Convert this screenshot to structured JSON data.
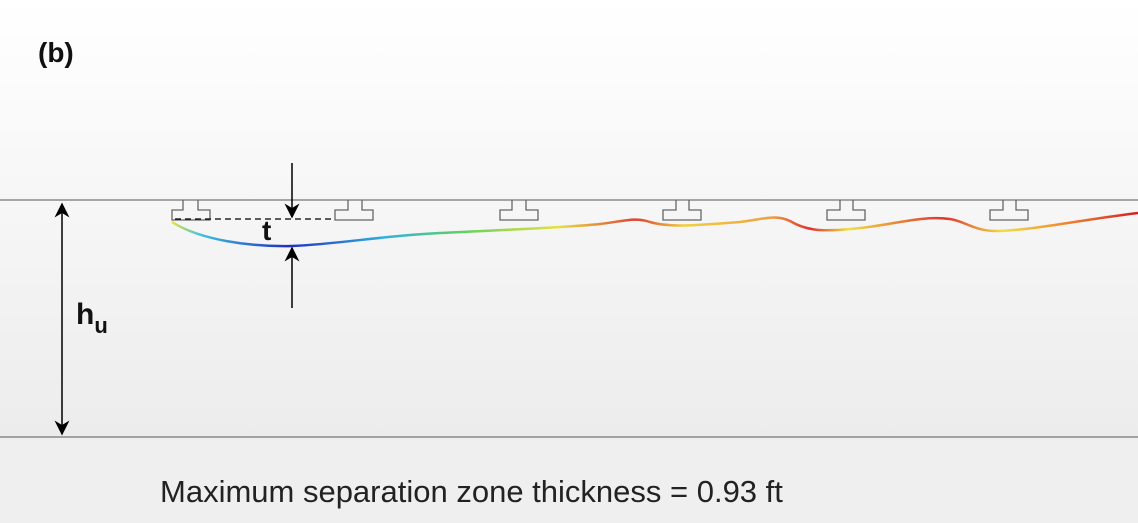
{
  "panel_label": "(b)",
  "labels": {
    "t": "t",
    "h": "h",
    "h_subscript": "u"
  },
  "caption": "Maximum separation zone thickness = 0.93 ft"
}
